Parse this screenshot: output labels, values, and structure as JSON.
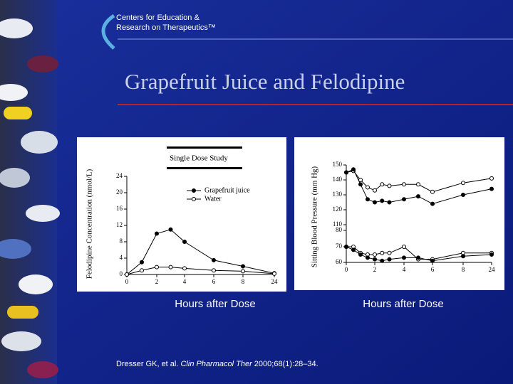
{
  "header": {
    "lines": [
      "Centers for Education &",
      "Research on Therapeutics™"
    ]
  },
  "title": "Grapefruit Juice and Felodipine",
  "chart_data": [
    {
      "type": "line",
      "title": "Single Dose Study",
      "ylabel": "Felodipine Concentration (nmol/L)",
      "xlabel": "Hours after Dose",
      "x": [
        0,
        1,
        2,
        3,
        4,
        6,
        8,
        24
      ],
      "xlim": [
        0,
        24
      ],
      "xticks": [
        0,
        2,
        4,
        6,
        8,
        24
      ],
      "ylim": [
        0,
        24
      ],
      "yticks": [
        0,
        4,
        8,
        12,
        16,
        20,
        24
      ],
      "series": [
        {
          "name": "Grapefruit juice",
          "color": "#000000",
          "marker": "filled",
          "values": [
            0,
            3,
            10,
            11,
            8,
            3.5,
            2,
            0.3
          ]
        },
        {
          "name": "Water",
          "color": "#000000",
          "marker": "open",
          "values": [
            0,
            1,
            1.8,
            1.8,
            1.5,
            1,
            0.8,
            0.2
          ]
        }
      ]
    },
    {
      "type": "line",
      "ylabel": "Sitting Blood Pressure (mm Hg)",
      "xlabel": "Hours after Dose",
      "x": [
        0,
        0.5,
        1,
        1.5,
        2,
        2.5,
        3,
        4,
        5,
        6,
        8,
        24
      ],
      "xlim": [
        0,
        24
      ],
      "xticks": [
        0,
        2,
        4,
        6,
        8,
        24
      ],
      "ylim": [
        60,
        150
      ],
      "yticks": [
        60,
        70,
        80,
        110,
        120,
        130,
        140,
        150
      ],
      "series": [
        {
          "color": "#000000",
          "marker": "open",
          "values": [
            145,
            146,
            140,
            135,
            133,
            137,
            136,
            137,
            137,
            132,
            138,
            141
          ]
        },
        {
          "color": "#000000",
          "marker": "filled",
          "values": [
            145,
            147,
            137,
            127,
            125,
            126,
            125,
            127,
            129,
            124,
            130,
            134
          ]
        },
        {
          "color": "#000000",
          "marker": "open",
          "values": [
            70,
            70,
            66,
            65,
            65,
            66,
            66,
            70,
            62,
            62,
            66,
            66
          ]
        },
        {
          "color": "#000000",
          "marker": "filled",
          "values": [
            70,
            68,
            65,
            63,
            62,
            61,
            62,
            63,
            63,
            61,
            64,
            65
          ]
        }
      ]
    }
  ],
  "citation": [
    "Dresser GK, et al. ",
    "Clin Pharmacol Ther",
    " 2000;68(1):28–34."
  ]
}
